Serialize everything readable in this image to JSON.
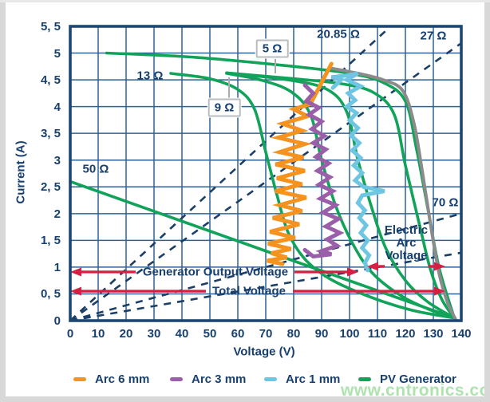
{
  "axes": {
    "y_title": "Current (A)",
    "x_title": "Voltage (V)",
    "y_tick_labels": [
      "5, 5",
      "5",
      "4, 5",
      "4",
      "3, 5",
      "3",
      "2, 5",
      "2",
      "1, 5",
      "1",
      "0, 5",
      "0"
    ],
    "y_tick_values": [
      5.5,
      5,
      4.5,
      4,
      3.5,
      3,
      2.5,
      2,
      1.5,
      1,
      0.5,
      0
    ],
    "x_tick_labels": [
      "0",
      "10",
      "20",
      "30",
      "40",
      "50",
      "60",
      "70",
      "80",
      "90",
      "100",
      "110",
      "120",
      "130",
      "140"
    ],
    "x_tick_values": [
      0,
      10,
      20,
      30,
      40,
      50,
      60,
      70,
      80,
      90,
      100,
      110,
      120,
      130,
      140
    ]
  },
  "resistor_labels": {
    "r50": {
      "text": "50 Ω",
      "boxed": false
    },
    "r13": {
      "text": "13 Ω",
      "boxed": false
    },
    "r9": {
      "text": "9 Ω",
      "boxed": true
    },
    "r5": {
      "text": "5 Ω",
      "boxed": true
    },
    "r2085": {
      "text": "20.85 Ω",
      "boxed": false
    },
    "r27": {
      "text": "27 Ω",
      "boxed": false
    },
    "r70": {
      "text": "70 Ω",
      "boxed": false
    }
  },
  "annotations": {
    "generator": {
      "text": "Generator Output Voltage",
      "current_level_A": 0.91,
      "span_V": [
        0,
        103
      ]
    },
    "total": {
      "text": "Total Voltage",
      "current_level_A": 0.55,
      "span_V": [
        0,
        134.3
      ]
    },
    "arc": {
      "line1": "Electric",
      "line2": "Arc",
      "line3": "Voltage",
      "current_level_A": 1.01,
      "span_V": [
        106,
        134.3
      ]
    }
  },
  "legend": {
    "items": [
      {
        "label": "Arc 6 mm",
        "color": "#f6921e"
      },
      {
        "label": "Arc 3 mm",
        "color": "#9a5fa8"
      },
      {
        "label": "Arc 1 mm",
        "color": "#6fc6e2"
      },
      {
        "label": "PV Generator",
        "color": "#12a35a"
      }
    ]
  },
  "watermark": "www.cntronics.com",
  "colors": {
    "grid": "#2e6295",
    "frame": "#1c4773",
    "text": "#17406e",
    "pv_green": "#12a35a",
    "composite_gray": "#8b8b8b",
    "load_dash": "#1b3f66",
    "arrow_red": "#d62043",
    "leader_gray": "#a9adb2",
    "arc6": "#f6921e",
    "arc3": "#9a5fa8",
    "arc1": "#6fc6e2"
  },
  "chart_data": {
    "type": "line",
    "xlabel": "Voltage (V)",
    "ylabel": "Current (A)",
    "xlim": [
      0,
      140
    ],
    "ylim": [
      0,
      5.5
    ],
    "grid": true,
    "legend_position": "bottom",
    "pv_curves": [
      {
        "name": "pv-curve-1",
        "points": [
          [
            13,
            5.0
          ],
          [
            45,
            4.92
          ],
          [
            80,
            4.75
          ],
          [
            100,
            4.62
          ],
          [
            112,
            4.45
          ],
          [
            120,
            4.1
          ],
          [
            124,
            3.2
          ],
          [
            128,
            2.1
          ],
          [
            132,
            1.0
          ],
          [
            137.5,
            0.05
          ]
        ]
      },
      {
        "name": "pv-curve-2",
        "points": [
          [
            56,
            4.63
          ],
          [
            80,
            4.52
          ],
          [
            98,
            4.42
          ],
          [
            109,
            4.25
          ],
          [
            116,
            3.85
          ],
          [
            120,
            2.9
          ],
          [
            125,
            1.8
          ],
          [
            129,
            0.95
          ],
          [
            133,
            0.4
          ],
          [
            137.5,
            0.05
          ]
        ]
      },
      {
        "name": "pv-curve-3",
        "points": [
          [
            56,
            4.63
          ],
          [
            78,
            4.5
          ],
          [
            92,
            4.32
          ],
          [
            99,
            3.9
          ],
          [
            103,
            3.0
          ],
          [
            108,
            2.1
          ],
          [
            113,
            1.35
          ],
          [
            120,
            0.75
          ],
          [
            128,
            0.35
          ],
          [
            137.5,
            0.05
          ]
        ]
      },
      {
        "name": "pv-curve-4",
        "points": [
          [
            56,
            4.62
          ],
          [
            68,
            4.5
          ],
          [
            79,
            4.28
          ],
          [
            86,
            3.85
          ],
          [
            90,
            3.0
          ],
          [
            95,
            2.15
          ],
          [
            101,
            1.45
          ],
          [
            108,
            0.9
          ],
          [
            118,
            0.48
          ],
          [
            128,
            0.22
          ],
          [
            137.5,
            0.05
          ]
        ]
      },
      {
        "name": "pv-curve-5",
        "points": [
          [
            36,
            4.62
          ],
          [
            50,
            4.52
          ],
          [
            60,
            4.32
          ],
          [
            66,
            3.95
          ],
          [
            70,
            3.15
          ],
          [
            74,
            2.35
          ],
          [
            78,
            1.65
          ],
          [
            84,
            1.15
          ],
          [
            93,
            0.78
          ],
          [
            107,
            0.45
          ],
          [
            122,
            0.2
          ],
          [
            137.5,
            0.05
          ]
        ]
      },
      {
        "name": "pv-line-50ohm",
        "points": [
          [
            0,
            2.6
          ],
          [
            137.5,
            0.05
          ]
        ]
      }
    ],
    "composite_gray_curve": {
      "points": [
        [
          93,
          4.72
        ],
        [
          103,
          4.62
        ],
        [
          112,
          4.5
        ],
        [
          119,
          4.3
        ],
        [
          123,
          3.7
        ],
        [
          126,
          2.8
        ],
        [
          129,
          1.8
        ],
        [
          132,
          0.9
        ],
        [
          135,
          0.35
        ],
        [
          138,
          0.02
        ]
      ]
    },
    "load_lines": [
      {
        "label": "20.85 Ω",
        "r_ohm": 20.85,
        "from": [
          0,
          0
        ],
        "to": [
          114.7,
          5.5
        ]
      },
      {
        "label": "27 Ω",
        "r_ohm": 27,
        "from": [
          0,
          0
        ],
        "to": [
          140,
          5.185
        ]
      },
      {
        "label": "70 Ω",
        "r_ohm": 70,
        "from": [
          0,
          0
        ],
        "to": [
          140,
          2.0
        ]
      },
      {
        "label": "",
        "r_ohm": 110,
        "from": [
          0,
          0
        ],
        "to": [
          140,
          1.27
        ]
      }
    ],
    "arc_traces": [
      {
        "name": "Arc 6 mm",
        "points": [
          [
            93.5,
            4.8
          ],
          [
            91,
            4.55
          ],
          [
            88.5,
            4.3
          ],
          [
            86,
            4.05
          ],
          [
            80,
            3.95
          ],
          [
            85,
            3.82
          ],
          [
            76,
            3.68
          ],
          [
            83,
            3.55
          ],
          [
            74.5,
            3.42
          ],
          [
            84,
            3.3
          ],
          [
            75,
            3.15
          ],
          [
            83.5,
            3.05
          ],
          [
            73.5,
            2.92
          ],
          [
            84,
            2.8
          ],
          [
            74,
            2.66
          ],
          [
            83,
            2.55
          ],
          [
            73.5,
            2.42
          ],
          [
            84.5,
            2.3
          ],
          [
            75,
            2.16
          ],
          [
            83,
            2.05
          ],
          [
            72.5,
            1.92
          ],
          [
            82,
            1.8
          ],
          [
            71.5,
            1.66
          ],
          [
            80.5,
            1.55
          ],
          [
            70.8,
            1.44
          ],
          [
            79,
            1.34
          ],
          [
            72,
            1.26
          ],
          [
            77.5,
            1.18
          ],
          [
            70.5,
            1.12
          ],
          [
            76,
            1.06
          ]
        ]
      },
      {
        "name": "Arc 3 mm",
        "points": [
          [
            84,
            4.4
          ],
          [
            87,
            4.25
          ],
          [
            84.5,
            4.1
          ],
          [
            89,
            3.98
          ],
          [
            85.5,
            3.85
          ],
          [
            90,
            3.72
          ],
          [
            86.5,
            3.58
          ],
          [
            91,
            3.45
          ],
          [
            87,
            3.32
          ],
          [
            91.5,
            3.2
          ],
          [
            88,
            3.06
          ],
          [
            92.5,
            2.94
          ],
          [
            88.5,
            2.8
          ],
          [
            93,
            2.68
          ],
          [
            89,
            2.54
          ],
          [
            94,
            2.42
          ],
          [
            89.5,
            2.28
          ],
          [
            95,
            2.16
          ],
          [
            90.5,
            2.02
          ],
          [
            96,
            1.9
          ],
          [
            91.5,
            1.76
          ],
          [
            96.5,
            1.64
          ],
          [
            92,
            1.52
          ],
          [
            95.5,
            1.4
          ],
          [
            90,
            1.3
          ],
          [
            93.5,
            1.24
          ],
          [
            87,
            1.2
          ],
          [
            84,
            1.32
          ]
        ]
      },
      {
        "name": "Arc 1 mm",
        "points": [
          [
            94,
            4.35
          ],
          [
            97,
            4.5
          ],
          [
            93.5,
            4.55
          ],
          [
            99,
            4.58
          ],
          [
            103,
            4.62
          ],
          [
            99,
            4.5
          ],
          [
            104,
            4.38
          ],
          [
            99.5,
            4.25
          ],
          [
            102,
            4.12
          ],
          [
            99,
            4.0
          ],
          [
            102.5,
            3.88
          ],
          [
            100,
            3.74
          ],
          [
            103,
            3.6
          ],
          [
            100.5,
            3.46
          ],
          [
            103.5,
            3.32
          ],
          [
            101,
            3.18
          ],
          [
            104,
            3.04
          ],
          [
            101.5,
            2.9
          ],
          [
            104.5,
            2.76
          ],
          [
            102,
            2.62
          ],
          [
            105,
            2.5
          ],
          [
            112.5,
            2.42
          ],
          [
            104.5,
            2.34
          ],
          [
            103,
            2.2
          ],
          [
            105.5,
            2.06
          ],
          [
            103.5,
            1.92
          ],
          [
            106,
            1.78
          ],
          [
            104,
            1.64
          ],
          [
            106.5,
            1.5
          ],
          [
            104.5,
            1.36
          ],
          [
            107,
            1.22
          ],
          [
            105.5,
            1.08
          ],
          [
            106.5,
            0.94
          ]
        ]
      }
    ]
  }
}
